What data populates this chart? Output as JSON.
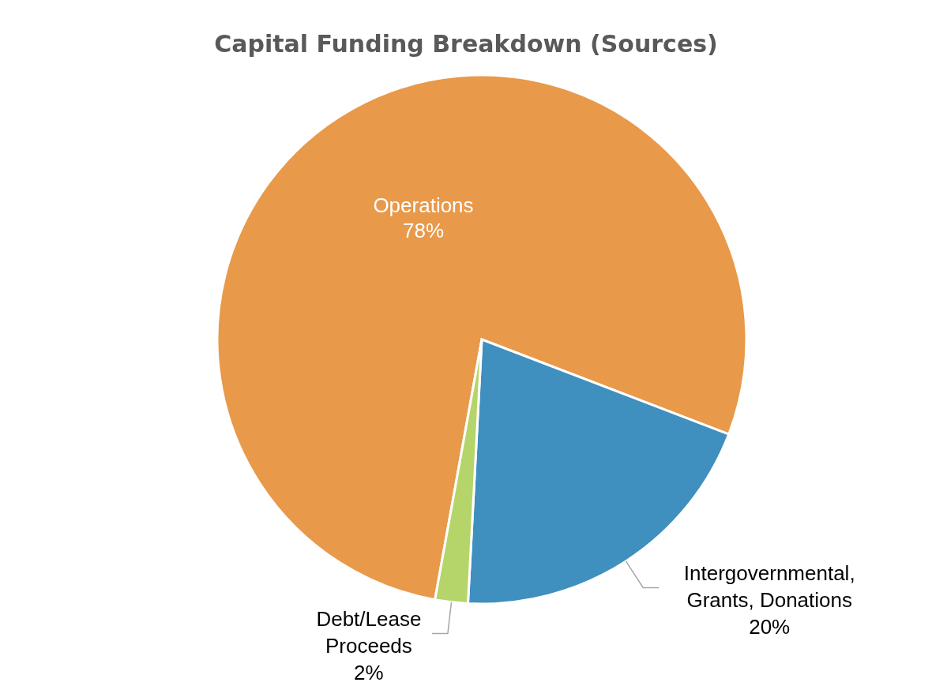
{
  "chart_data": {
    "type": "pie",
    "title": "Capital Funding Breakdown (Sources)",
    "categories": [
      "Operations",
      "Intergovernmental, Grants, Donations",
      "Debt/Lease Proceeds"
    ],
    "values": [
      78,
      20,
      2
    ],
    "colors": [
      "#e8994a",
      "#3f8fbf",
      "#b5d56a"
    ],
    "value_labels": [
      "78%",
      "20%",
      "2%"
    ],
    "legend": false
  }
}
